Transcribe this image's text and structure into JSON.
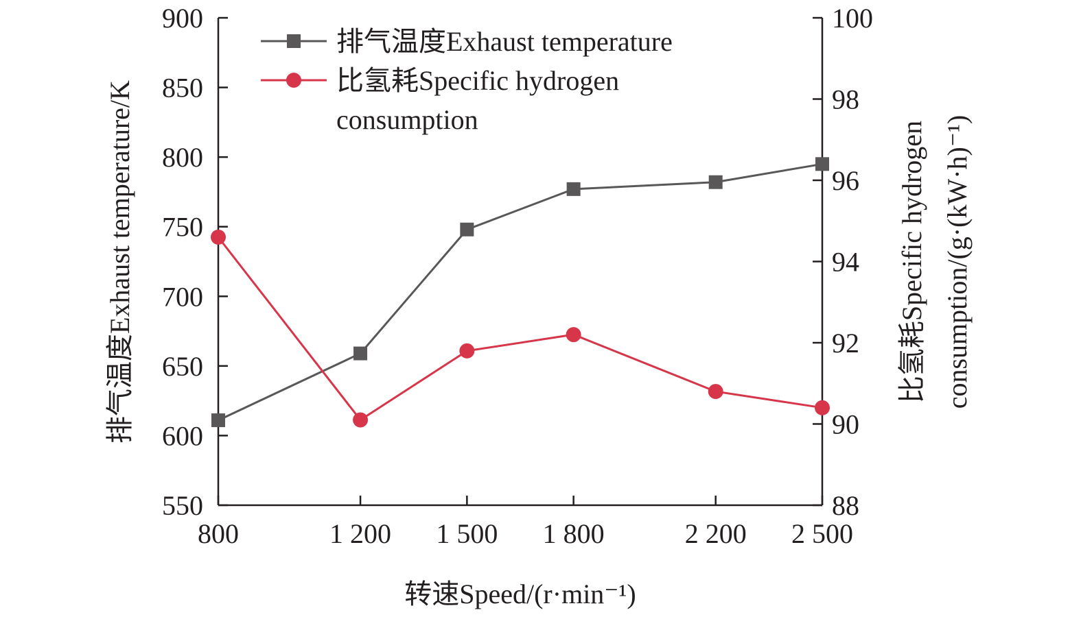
{
  "chart_data": {
    "type": "line",
    "x_categories": [
      "800",
      "1 200",
      "1 500",
      "1 800",
      "2 200",
      "2 500"
    ],
    "x_values": [
      800,
      1200,
      1500,
      1800,
      2200,
      2500
    ],
    "xlabel": "转速Speed/(r·min⁻¹)",
    "ylabel_left": "排气温度Exhaust temperature/K",
    "ylabel_right_line1": "比氢耗Specific hydrogen",
    "ylabel_right_line2": "consumption/(g·(kW·h)⁻¹)",
    "ylim_left": [
      550,
      900
    ],
    "yticks_left": [
      "550",
      "600",
      "650",
      "700",
      "750",
      "800",
      "850",
      "900"
    ],
    "ylim_right": [
      88,
      100
    ],
    "yticks_right": [
      "88",
      "90",
      "92",
      "94",
      "96",
      "98",
      "100"
    ],
    "grid": false,
    "legend_position": "top-left",
    "series": [
      {
        "name": "排气温度Exhaust temperature",
        "axis": "left",
        "marker": "square",
        "color": "#595757",
        "values": [
          611,
          659,
          748,
          777,
          782,
          795
        ]
      },
      {
        "name_line1": "比氢耗Specific hydrogen",
        "name_line2": "consumption",
        "axis": "right",
        "marker": "circle",
        "color": "#d7364a",
        "values": [
          94.6,
          90.1,
          91.8,
          92.2,
          90.8,
          90.4
        ]
      }
    ]
  }
}
